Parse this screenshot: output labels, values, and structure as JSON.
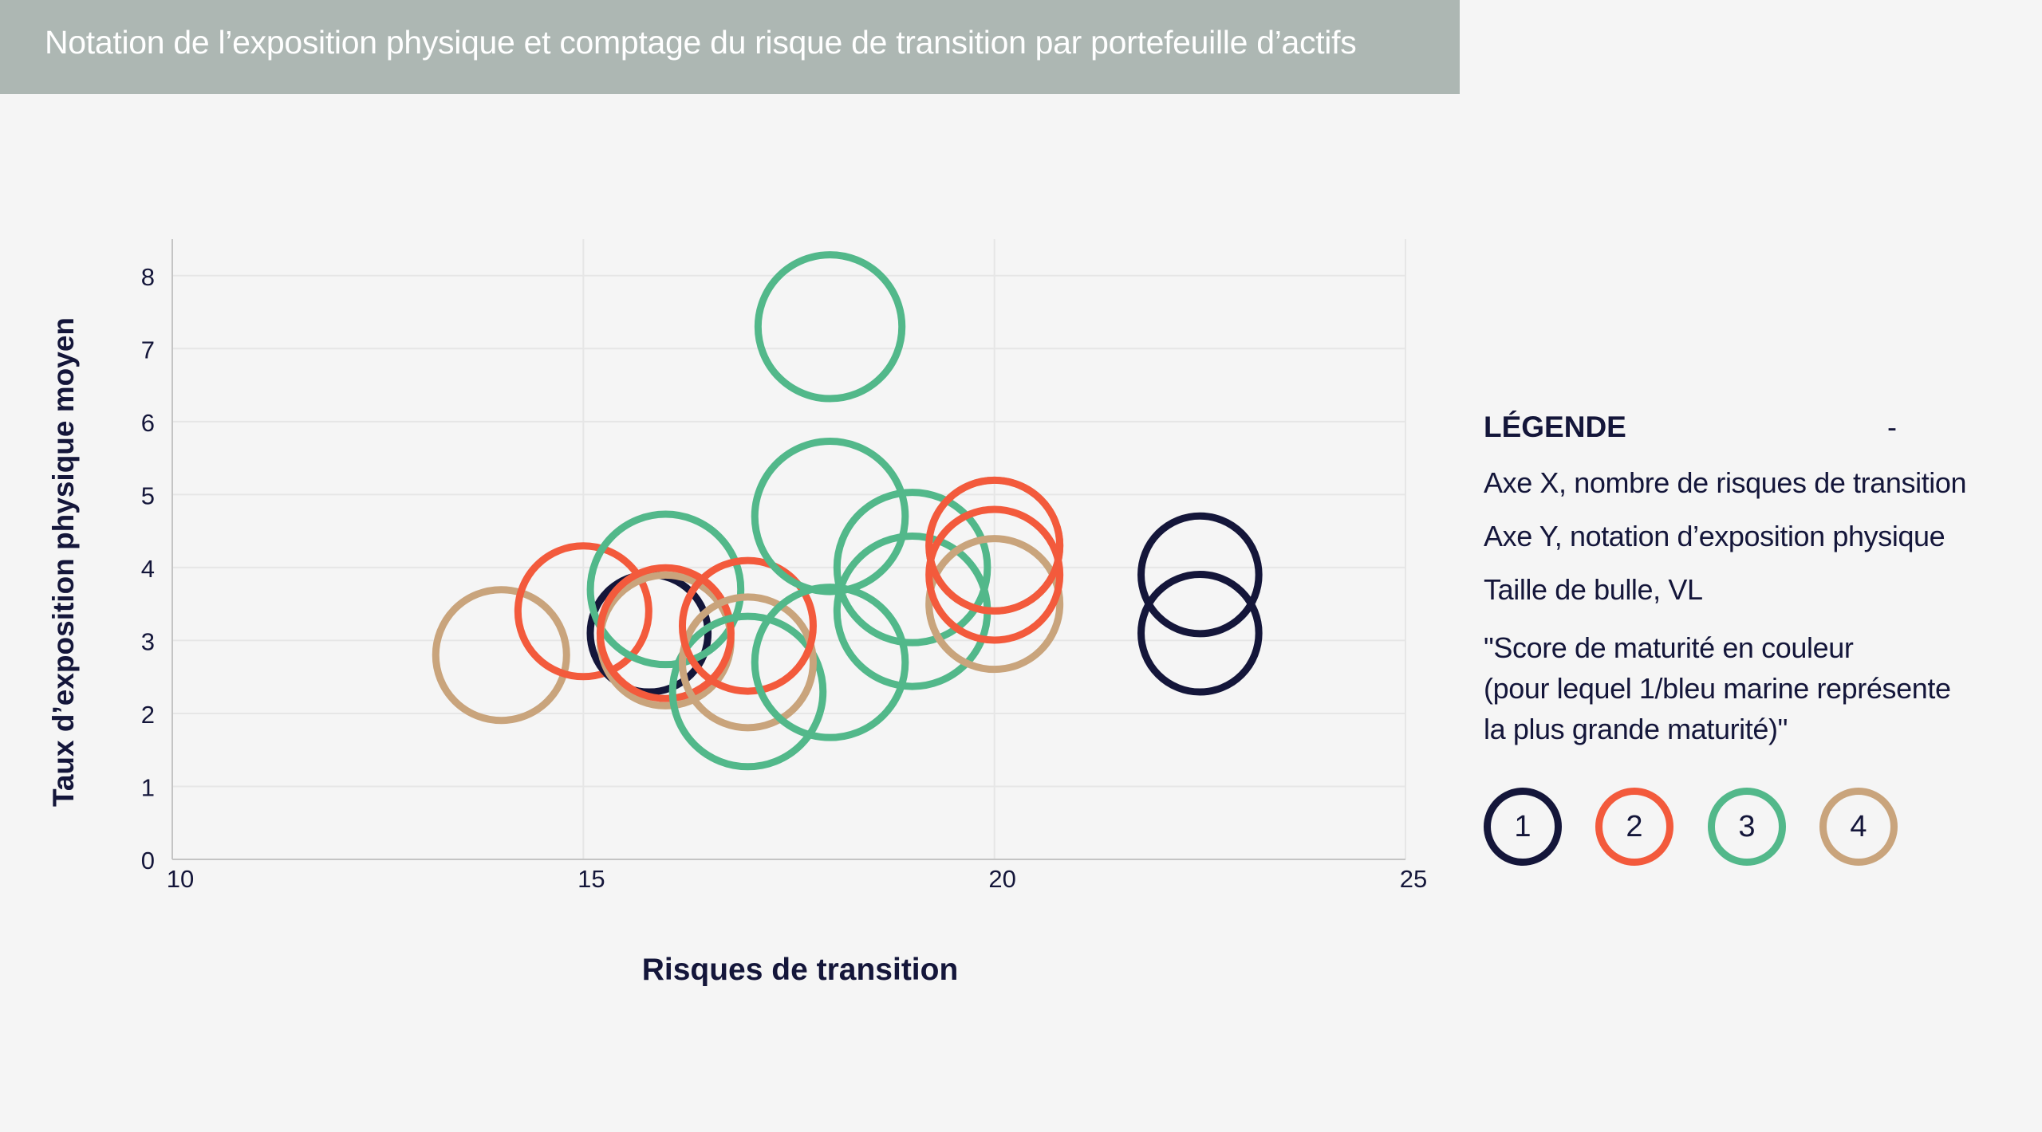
{
  "title": "Notation de l’exposition physique et comptage du risque de transition par portefeuille d’actifs",
  "colors": {
    "1": "#14163a",
    "2": "#f35a3c",
    "3": "#52b88a",
    "4": "#c9a47c",
    "title_bar": "#adb7b3",
    "background": "#f5f5f5"
  },
  "legend": {
    "heading": "LÉGENDE",
    "dash": "-",
    "x_desc": "Axe X, nombre de risques de transition",
    "y_desc": "Axe Y, notation d’exposition physique",
    "size_desc": "Taille de bulle, VL",
    "score_desc": "\"Score de maturité en couleur\n(pour lequel 1/bleu marine représente\nla plus grande maturité)\"",
    "keys": [
      "1",
      "2",
      "3",
      "4"
    ]
  },
  "chart_data": {
    "type": "scatter",
    "title": "Notation de l’exposition physique et comptage du risque de transition par portefeuille d’actifs",
    "xlabel": "Risques de transition",
    "ylabel": "Taux d’exposition physique moyen",
    "xlim": [
      10,
      25
    ],
    "ylim": [
      0,
      8.5
    ],
    "x_ticks": [
      10,
      15,
      20,
      25
    ],
    "y_ticks": [
      0,
      1,
      2,
      3,
      4,
      5,
      6,
      7,
      8
    ],
    "grid": true,
    "bubble_size": "VL",
    "color_encoding": "Score de maturité",
    "points": [
      {
        "x": 14.0,
        "y": 2.8,
        "score": 4,
        "size": 1.0
      },
      {
        "x": 15.0,
        "y": 3.4,
        "score": 2,
        "size": 1.0
      },
      {
        "x": 15.8,
        "y": 3.1,
        "score": 1,
        "size": 0.9
      },
      {
        "x": 16.0,
        "y": 3.7,
        "score": 3,
        "size": 1.15
      },
      {
        "x": 16.0,
        "y": 3.0,
        "score": 4,
        "size": 1.0
      },
      {
        "x": 16.0,
        "y": 3.1,
        "score": 2,
        "size": 1.0
      },
      {
        "x": 17.0,
        "y": 2.3,
        "score": 3,
        "size": 1.15
      },
      {
        "x": 17.0,
        "y": 2.7,
        "score": 4,
        "size": 1.0
      },
      {
        "x": 17.0,
        "y": 3.2,
        "score": 2,
        "size": 1.0
      },
      {
        "x": 18.0,
        "y": 7.3,
        "score": 3,
        "size": 1.1
      },
      {
        "x": 18.0,
        "y": 4.7,
        "score": 3,
        "size": 1.15
      },
      {
        "x": 18.0,
        "y": 2.7,
        "score": 3,
        "size": 1.15
      },
      {
        "x": 19.0,
        "y": 4.0,
        "score": 3,
        "size": 1.15
      },
      {
        "x": 19.0,
        "y": 3.4,
        "score": 3,
        "size": 1.15
      },
      {
        "x": 20.0,
        "y": 4.3,
        "score": 4,
        "size": 1.0
      },
      {
        "x": 20.0,
        "y": 3.5,
        "score": 4,
        "size": 1.0
      },
      {
        "x": 20.0,
        "y": 4.3,
        "score": 2,
        "size": 1.0
      },
      {
        "x": 20.0,
        "y": 3.9,
        "score": 2,
        "size": 1.0
      },
      {
        "x": 22.5,
        "y": 3.9,
        "score": 1,
        "size": 0.9
      },
      {
        "x": 22.5,
        "y": 3.1,
        "score": 1,
        "size": 0.9
      }
    ]
  }
}
